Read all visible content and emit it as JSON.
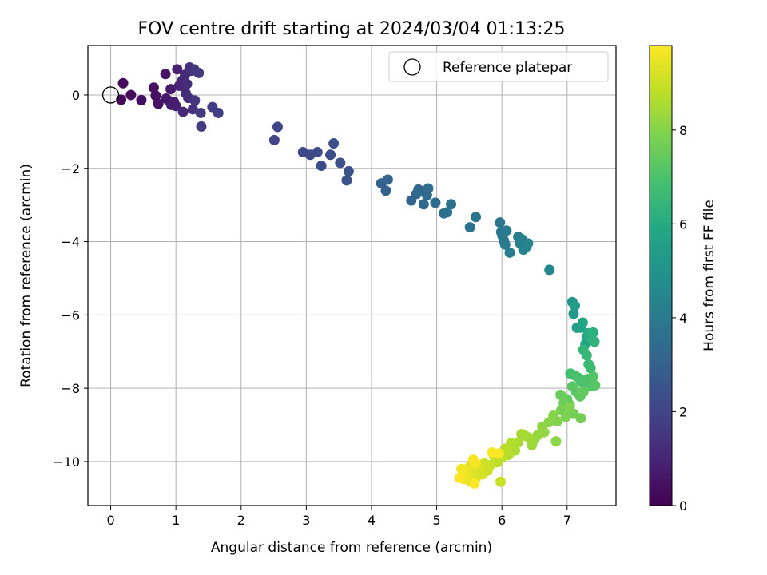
{
  "chart_data": {
    "type": "scatter",
    "title": "FOV centre drift starting at 2024/03/04 01:13:25",
    "xlabel": "Angular distance from reference (arcmin)",
    "ylabel": "Rotation from reference (arcmin)",
    "xlim": [
      -0.35,
      7.75
    ],
    "ylim": [
      -11.2,
      1.35
    ],
    "x_ticks": [
      0,
      1,
      2,
      3,
      4,
      5,
      6,
      7
    ],
    "y_ticks": [
      0,
      -2,
      -4,
      -6,
      -8,
      -10
    ],
    "x_tick_labels": [
      "0",
      "1",
      "2",
      "3",
      "4",
      "5",
      "6",
      "7"
    ],
    "y_tick_labels": [
      "0",
      "−2",
      "−4",
      "−6",
      "−8",
      "−10"
    ],
    "grid": true,
    "legend": {
      "position": "top-right",
      "entries": [
        "Reference platepar"
      ]
    },
    "colorbar": {
      "label": "Hours from first FF file",
      "colormap": "viridis",
      "range": [
        0,
        9.8
      ],
      "ticks": [
        0,
        2,
        4,
        6,
        8
      ],
      "tick_labels": [
        "0",
        "2",
        "4",
        "6",
        "8"
      ]
    },
    "reference_point": {
      "x": 0,
      "y": 0
    },
    "points": [
      [
        0.16,
        -0.13,
        0.2
      ],
      [
        0.19,
        0.32,
        0.25
      ],
      [
        0.31,
        0.0,
        0.3
      ],
      [
        0.47,
        -0.14,
        0.35
      ],
      [
        0.66,
        0.2,
        0.4
      ],
      [
        0.69,
        -0.02,
        0.45
      ],
      [
        0.73,
        -0.24,
        0.5
      ],
      [
        0.84,
        0.57,
        0.55
      ],
      [
        0.85,
        -0.1,
        0.6
      ],
      [
        0.9,
        -0.17,
        0.65
      ],
      [
        0.92,
        0.16,
        0.7
      ],
      [
        0.93,
        -0.27,
        0.75
      ],
      [
        0.97,
        -0.19,
        0.8
      ],
      [
        1.0,
        -0.3,
        0.85
      ],
      [
        1.02,
        0.7,
        0.9
      ],
      [
        1.05,
        0.25,
        0.95
      ],
      [
        1.08,
        0.3,
        1.0
      ],
      [
        1.1,
        0.4,
        1.05
      ],
      [
        1.11,
        -0.46,
        1.1
      ],
      [
        1.14,
        0.55,
        1.15
      ],
      [
        1.15,
        0.05,
        1.2
      ],
      [
        1.17,
        0.3,
        1.25
      ],
      [
        1.19,
        -0.08,
        1.3
      ],
      [
        1.21,
        0.75,
        1.35
      ],
      [
        1.24,
        0.66,
        1.4
      ],
      [
        1.26,
        -0.39,
        1.45
      ],
      [
        1.28,
        0.7,
        1.5
      ],
      [
        1.29,
        -0.15,
        1.55
      ],
      [
        1.35,
        0.6,
        1.6
      ],
      [
        1.38,
        -0.49,
        1.65
      ],
      [
        1.39,
        -0.86,
        1.7
      ],
      [
        1.56,
        -0.33,
        1.75
      ],
      [
        1.65,
        -0.49,
        1.8
      ],
      [
        2.51,
        -1.23,
        2.0
      ],
      [
        2.56,
        -0.87,
        2.05
      ],
      [
        2.95,
        -1.56,
        2.1
      ],
      [
        3.06,
        -1.63,
        2.15
      ],
      [
        3.17,
        -1.56,
        2.2
      ],
      [
        3.23,
        -1.93,
        2.25
      ],
      [
        3.37,
        -1.63,
        2.3
      ],
      [
        3.42,
        -1.32,
        2.35
      ],
      [
        3.52,
        -1.85,
        2.4
      ],
      [
        3.62,
        -2.33,
        2.45
      ],
      [
        3.65,
        -2.08,
        2.5
      ],
      [
        4.15,
        -2.41,
        3.0
      ],
      [
        4.22,
        -2.61,
        3.05
      ],
      [
        4.25,
        -2.31,
        3.1
      ],
      [
        4.61,
        -2.88,
        3.15
      ],
      [
        4.69,
        -2.7,
        3.2
      ],
      [
        4.72,
        -2.58,
        3.25
      ],
      [
        4.75,
        -2.63,
        3.3
      ],
      [
        4.8,
        -2.98,
        3.35
      ],
      [
        4.85,
        -2.73,
        3.4
      ],
      [
        4.87,
        -2.55,
        3.45
      ],
      [
        4.98,
        -2.94,
        3.5
      ],
      [
        5.11,
        -3.23,
        3.55
      ],
      [
        5.16,
        -3.2,
        3.6
      ],
      [
        5.22,
        -2.98,
        3.65
      ],
      [
        5.51,
        -3.61,
        3.7
      ],
      [
        5.6,
        -3.33,
        3.75
      ],
      [
        5.97,
        -3.48,
        3.8
      ],
      [
        5.99,
        -3.74,
        3.85
      ],
      [
        6.01,
        -3.85,
        3.9
      ],
      [
        6.03,
        -3.97,
        3.95
      ],
      [
        6.05,
        -4.08,
        4.0
      ],
      [
        6.07,
        -3.7,
        4.05
      ],
      [
        6.12,
        -4.3,
        4.1
      ],
      [
        6.25,
        -3.87,
        4.15
      ],
      [
        6.28,
        -4.05,
        4.2
      ],
      [
        6.31,
        -3.94,
        4.25
      ],
      [
        6.33,
        -4.22,
        4.3
      ],
      [
        6.37,
        -4.15,
        4.35
      ],
      [
        6.4,
        -4.05,
        4.4
      ],
      [
        6.73,
        -4.77,
        4.5
      ],
      [
        7.08,
        -5.65,
        5.2
      ],
      [
        7.1,
        -5.97,
        5.3
      ],
      [
        7.12,
        -5.75,
        5.4
      ],
      [
        7.15,
        -6.35,
        5.5
      ],
      [
        7.21,
        -6.35,
        5.6
      ],
      [
        7.24,
        -6.21,
        5.7
      ],
      [
        7.28,
        -6.8,
        5.8
      ],
      [
        7.3,
        -6.6,
        5.9
      ],
      [
        7.33,
        -6.5,
        6.0
      ],
      [
        7.37,
        -6.67,
        6.1
      ],
      [
        7.4,
        -6.48,
        6.2
      ],
      [
        7.42,
        -6.73,
        6.3
      ],
      [
        7.25,
        -6.95,
        6.4
      ],
      [
        7.3,
        -7.1,
        6.5
      ],
      [
        7.33,
        -7.35,
        6.6
      ],
      [
        7.36,
        -7.45,
        6.7
      ],
      [
        7.05,
        -7.6,
        6.8
      ],
      [
        7.12,
        -7.65,
        6.85
      ],
      [
        7.18,
        -7.72,
        6.9
      ],
      [
        7.22,
        -7.82,
        6.95
      ],
      [
        7.26,
        -7.88,
        7.0
      ],
      [
        7.31,
        -7.75,
        7.05
      ],
      [
        7.35,
        -7.95,
        7.1
      ],
      [
        7.4,
        -7.68,
        7.15
      ],
      [
        7.43,
        -7.92,
        7.2
      ],
      [
        7.08,
        -7.95,
        7.25
      ],
      [
        7.14,
        -8.1,
        7.3
      ],
      [
        7.2,
        -8.22,
        7.35
      ],
      [
        7.25,
        -8.1,
        7.4
      ],
      [
        7.0,
        -8.3,
        7.45
      ],
      [
        7.04,
        -8.45,
        7.5
      ],
      [
        6.9,
        -8.18,
        7.55
      ],
      [
        6.95,
        -8.4,
        7.6
      ],
      [
        7.1,
        -8.7,
        7.7
      ],
      [
        7.21,
        -8.82,
        7.75
      ],
      [
        6.91,
        -8.6,
        7.8
      ],
      [
        6.98,
        -8.78,
        7.85
      ],
      [
        7.04,
        -8.52,
        7.9
      ],
      [
        6.85,
        -8.9,
        7.95
      ],
      [
        6.79,
        -8.75,
        8.0
      ],
      [
        6.72,
        -8.93,
        8.05
      ],
      [
        6.83,
        -9.45,
        8.1
      ],
      [
        6.62,
        -9.05,
        8.15
      ],
      [
        6.65,
        -9.2,
        8.2
      ],
      [
        6.55,
        -9.28,
        8.25
      ],
      [
        6.5,
        -9.4,
        8.3
      ],
      [
        6.46,
        -9.55,
        8.35
      ],
      [
        6.42,
        -9.35,
        8.4
      ],
      [
        6.36,
        -9.3,
        8.45
      ],
      [
        6.3,
        -9.25,
        8.5
      ],
      [
        6.25,
        -9.48,
        8.55
      ],
      [
        6.2,
        -9.7,
        8.6
      ],
      [
        6.14,
        -9.5,
        8.65
      ],
      [
        6.1,
        -9.82,
        8.7
      ],
      [
        6.05,
        -9.65,
        8.75
      ],
      [
        5.99,
        -9.9,
        8.8
      ],
      [
        5.93,
        -10.02,
        8.85
      ],
      [
        5.88,
        -9.85,
        8.9
      ],
      [
        5.82,
        -10.1,
        8.95
      ],
      [
        5.78,
        -10.25,
        9.0
      ],
      [
        5.98,
        -10.55,
        9.05
      ],
      [
        5.73,
        -10.05,
        9.1
      ],
      [
        5.7,
        -10.35,
        9.15
      ],
      [
        5.65,
        -10.2,
        9.2
      ],
      [
        5.6,
        -10.45,
        9.25
      ],
      [
        5.55,
        -10.3,
        9.3
      ],
      [
        5.52,
        -10.55,
        9.35
      ],
      [
        5.5,
        -10.15,
        9.4
      ],
      [
        5.48,
        -10.4,
        9.45
      ],
      [
        5.45,
        -10.25,
        9.5
      ],
      [
        5.42,
        -10.48,
        9.55
      ],
      [
        5.4,
        -10.35,
        9.6
      ],
      [
        5.38,
        -10.2,
        9.65
      ],
      [
        5.56,
        -9.95,
        9.7
      ],
      [
        5.6,
        -10.05,
        9.72
      ],
      [
        5.95,
        -9.78,
        9.74
      ],
      [
        5.85,
        -9.75,
        9.76
      ],
      [
        5.58,
        -10.6,
        9.78
      ],
      [
        5.35,
        -10.45,
        9.8
      ]
    ]
  }
}
